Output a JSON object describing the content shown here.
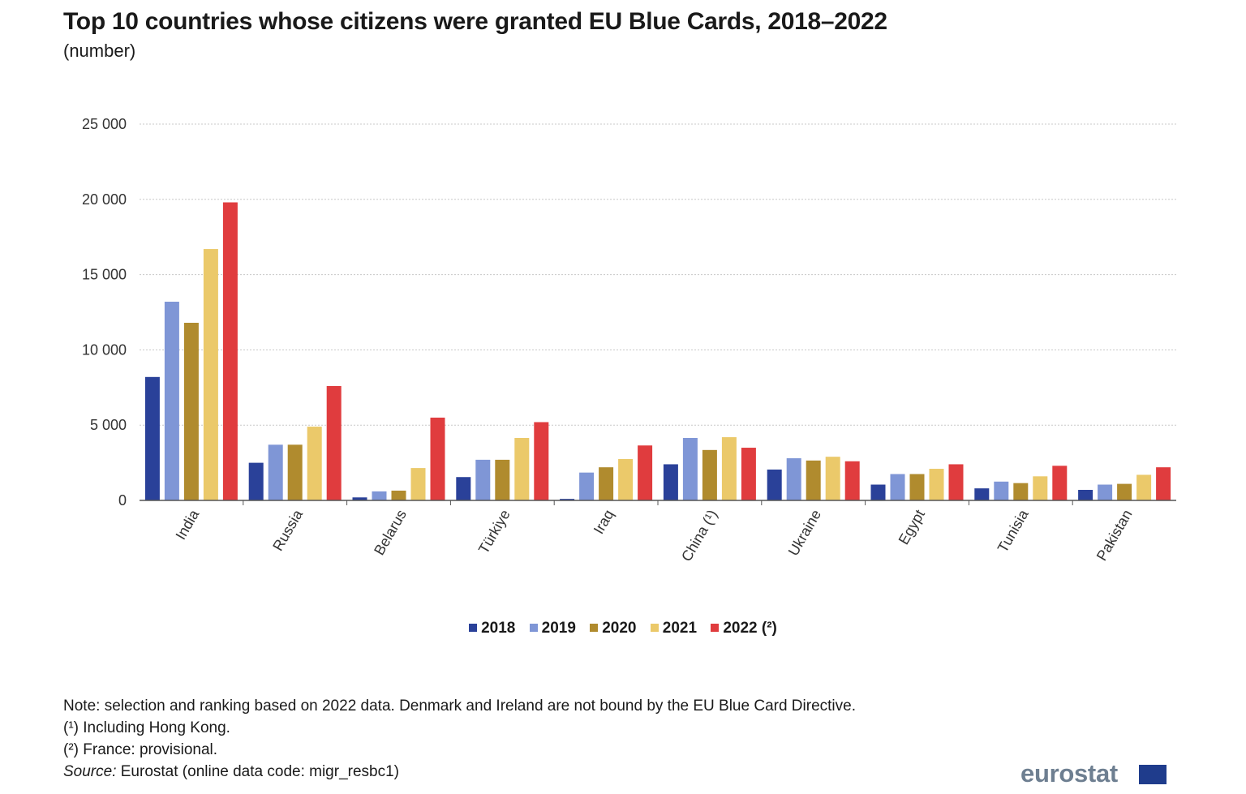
{
  "header": {
    "title": "Top 10 countries whose citizens were granted EU Blue Cards, 2018–2022",
    "subtitle": "(number)"
  },
  "legend": [
    {
      "label": "2018",
      "color": "#2a4199"
    },
    {
      "label": "2019",
      "color": "#7f96d6"
    },
    {
      "label": "2020",
      "color": "#b08b2e"
    },
    {
      "label": "2021",
      "color": "#ebc96a"
    },
    {
      "label": "2022 (²)",
      "color": "#e03c3e"
    }
  ],
  "notes": {
    "note": "Note: selection and ranking based on 2022 data. Denmark and Ireland  are not bound by the EU Blue Card Directive.",
    "fn1": "(¹) Including  Hong Kong.",
    "fn2": "(²) France: provisional.",
    "source_label": "Source:",
    "source_text": " Eurostat (online data code: migr_resbc1)"
  },
  "logo": {
    "text": "eurostat"
  },
  "chart_data": {
    "type": "bar",
    "title": "Top 10 countries whose citizens were granted EU Blue Cards, 2018–2022",
    "subtitle": "(number)",
    "categories": [
      "India",
      "Russia",
      "Belarus",
      "Türkiye",
      "Iraq",
      "China (¹)",
      "Ukraine",
      "Egypt",
      "Tunisia",
      "Pakistan"
    ],
    "ylim": [
      0,
      25000
    ],
    "yticks": [
      0,
      5000,
      10000,
      15000,
      20000,
      25000
    ],
    "ytick_labels": [
      "0",
      "5 000",
      "10 000",
      "15 000",
      "20 000",
      "25 000"
    ],
    "grid": true,
    "legend_position": "bottom",
    "series": [
      {
        "name": "2018",
        "color": "#2a4199",
        "values": [
          8200,
          2500,
          200,
          1550,
          100,
          2400,
          2050,
          1050,
          800,
          700
        ]
      },
      {
        "name": "2019",
        "color": "#7f96d6",
        "values": [
          13200,
          3700,
          600,
          2700,
          1850,
          4150,
          2800,
          1750,
          1250,
          1050
        ]
      },
      {
        "name": "2020",
        "color": "#b08b2e",
        "values": [
          11800,
          3700,
          650,
          2700,
          2200,
          3350,
          2650,
          1750,
          1150,
          1100
        ]
      },
      {
        "name": "2021",
        "color": "#ebc96a",
        "values": [
          16700,
          4900,
          2150,
          4150,
          2750,
          4200,
          2900,
          2100,
          1600,
          1700
        ]
      },
      {
        "name": "2022 (²)",
        "color": "#e03c3e",
        "values": [
          19800,
          7600,
          5500,
          5200,
          3650,
          3500,
          2600,
          2400,
          2300,
          2200
        ]
      }
    ]
  }
}
